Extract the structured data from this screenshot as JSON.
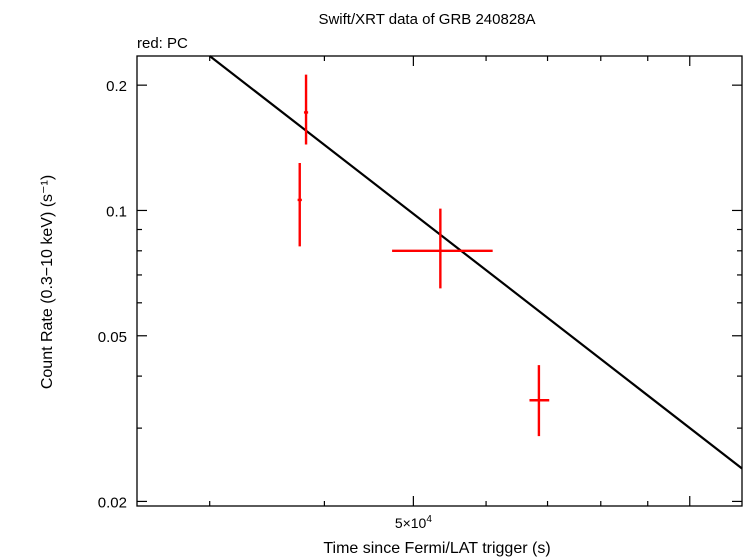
{
  "chart_data": {
    "type": "scatter",
    "title": "Swift/XRT data of GRB 240828A",
    "subtitle": "red: PC",
    "xlabel": "Time since Fermi/LAT trigger (s)",
    "ylabel": "Count Rate (0.3−10 keV) (s⁻¹)",
    "xscale": "log",
    "yscale": "log",
    "xlim": [
      25000,
      114000
    ],
    "ylim": [
      0.0195,
      0.235
    ],
    "x_tick_labels": [
      {
        "value": 50000,
        "base": "5×10",
        "exp": "4"
      }
    ],
    "y_tick_labels": [
      {
        "value": 0.2,
        "label": "0.2"
      },
      {
        "value": 0.1,
        "label": "0.1"
      },
      {
        "value": 0.05,
        "label": "0.05"
      },
      {
        "value": 0.02,
        "label": "0.02"
      }
    ],
    "series": [
      {
        "color": "#ff0000",
        "points": [
          {
            "x": 37600,
            "xerr_lo": 200,
            "xerr_hi": 200,
            "y": 0.106,
            "yerr_lo": 0.024,
            "yerr_hi": 0.024
          },
          {
            "x": 38200,
            "xerr_lo": 200,
            "xerr_hi": 200,
            "y": 0.172,
            "yerr_lo": 0.028,
            "yerr_hi": 0.04
          },
          {
            "x": 53500,
            "xerr_lo": 6100,
            "xerr_hi": 7500,
            "y": 0.08,
            "yerr_lo": 0.015,
            "yerr_hi": 0.021
          },
          {
            "x": 68500,
            "xerr_lo": 1600,
            "xerr_hi": 1800,
            "y": 0.035,
            "yerr_lo": 0.0063,
            "yerr_hi": 0.0075
          }
        ]
      }
    ],
    "model_line": {
      "color": "#000000",
      "points": [
        {
          "x": 30000,
          "y": 0.235
        },
        {
          "x": 114000,
          "y": 0.024
        }
      ]
    },
    "grid": false
  }
}
